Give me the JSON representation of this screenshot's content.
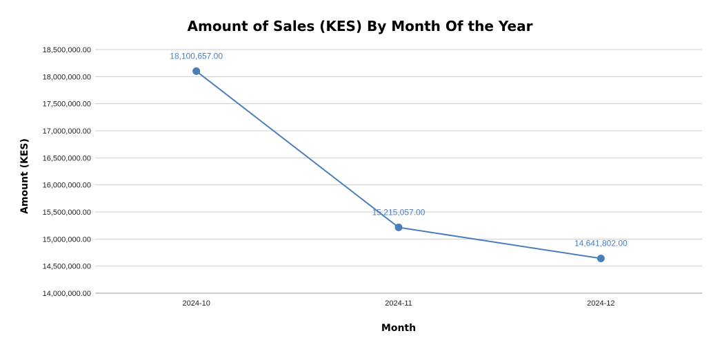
{
  "chart_data": {
    "type": "line",
    "title": "Amount of Sales (KES) By Month Of the Year",
    "xlabel": "Month",
    "ylabel": "Amount (KES)",
    "categories": [
      "2024-10",
      "2024-11",
      "2024-12"
    ],
    "values": [
      18100657.0,
      15215057.0,
      14641802.0
    ],
    "data_labels": [
      "18,100,657.00",
      "15,215,057.00",
      "14,641,802.00"
    ],
    "ylim": [
      14000000,
      18500000
    ],
    "y_ticks": [
      {
        "value": 18500000,
        "label": "18,500,000.00"
      },
      {
        "value": 18000000,
        "label": "18,000,000.00"
      },
      {
        "value": 17500000,
        "label": "17,500,000.00"
      },
      {
        "value": 17000000,
        "label": "17,000,000.00"
      },
      {
        "value": 16500000,
        "label": "16,500,000.00"
      },
      {
        "value": 16000000,
        "label": "16,000,000.00"
      },
      {
        "value": 15500000,
        "label": "15,500,000.00"
      },
      {
        "value": 15000000,
        "label": "15,000,000.00"
      },
      {
        "value": 14500000,
        "label": "14,500,000.00"
      },
      {
        "value": 14000000,
        "label": "14,000,000.00"
      }
    ],
    "grid": true,
    "legend": "none",
    "line_color": "#4a7ebb"
  }
}
